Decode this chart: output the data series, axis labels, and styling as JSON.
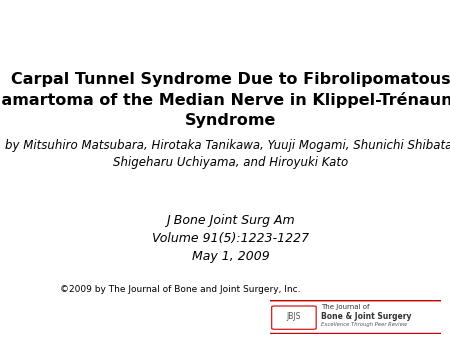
{
  "title_line1": "Carpal Tunnel Syndrome Due to Fibrolipomatous",
  "title_line2": "Hamartoma of the Median Nerve in Klippel-Trénaunay",
  "title_line3": "Syndrome",
  "authors_line1": "by Mitsuhiro Matsubara, Hirotaka Tanikawa, Yuuji Mogami, Shunichi Shibata,",
  "authors_line2": "Shigeharu Uchiyama, and Hiroyuki Kato",
  "journal_line1": "J Bone Joint Surg Am",
  "journal_line2": "Volume 91(5):1223-1227",
  "journal_line3": "May 1, 2009",
  "copyright": "©2009 by The Journal of Bone and Joint Surgery, Inc.",
  "logo_text1": "The Journal of",
  "logo_text2": "Bone & Joint Surgery",
  "logo_text3": "Excellence Through Peer Review",
  "logo_abbr": "JBJS",
  "background_color": "#ffffff",
  "title_color": "#000000",
  "authors_color": "#000000",
  "journal_color": "#000000",
  "copyright_color": "#000000",
  "logo_border_color": "#cc0000",
  "title_fontsize": 11.5,
  "authors_fontsize": 8.5,
  "journal_fontsize": 9.0,
  "copyright_fontsize": 6.5
}
